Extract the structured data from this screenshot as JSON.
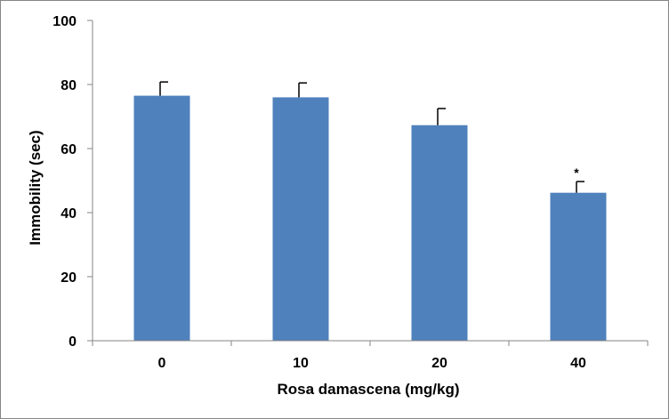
{
  "chart_data": {
    "type": "bar",
    "title": "",
    "xlabel": "Rosa damascena (mg/kg)",
    "ylabel": "Immobility (sec)",
    "categories": [
      "0",
      "10",
      "20",
      "40"
    ],
    "series": [
      {
        "values": [
          76.5,
          76,
          67.3,
          46.2
        ],
        "error": [
          4.3,
          4.5,
          5.2,
          3.5
        ],
        "annotations": [
          "",
          "",
          "",
          "*"
        ],
        "color": "#4F81BD"
      }
    ],
    "ylim": [
      0,
      100
    ],
    "yticks": [
      0,
      20,
      40,
      60,
      80,
      100
    ],
    "ytick_labels": [
      "0",
      "20",
      "40",
      "60",
      "80",
      "100"
    ],
    "grid": false,
    "legend": "none"
  }
}
